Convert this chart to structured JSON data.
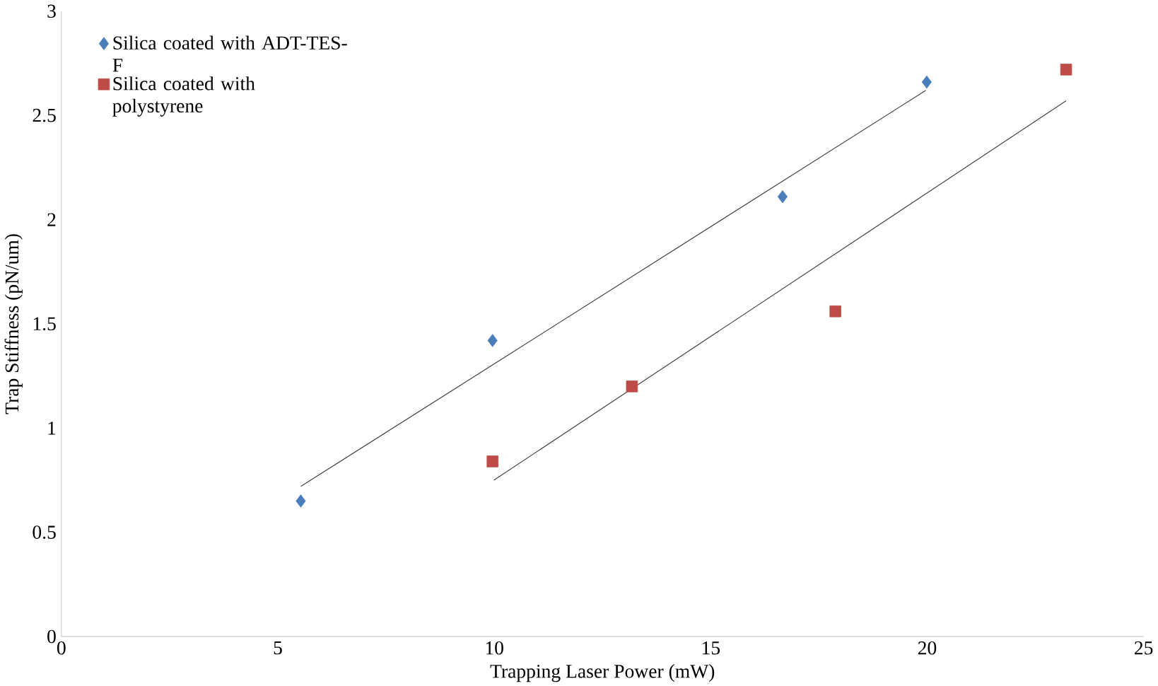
{
  "chart_data": {
    "type": "scatter",
    "xlabel": "Trapping Laser Power (mW)",
    "ylabel": "Trap Stiffness (pN/um)",
    "xlim": [
      0,
      25
    ],
    "ylim": [
      0,
      3
    ],
    "xticks": [
      0,
      5,
      10,
      15,
      20,
      25
    ],
    "yticks": [
      0,
      0.5,
      1,
      1.5,
      2,
      2.5,
      3
    ],
    "grid": false,
    "legend": "top left",
    "series": [
      {
        "name": "Silica coated with ADT-TES-F",
        "color": "#4a7ebb",
        "marker": "diamond",
        "x": [
          5.53,
          9.96,
          16.66,
          19.99
        ],
        "values": [
          0.65,
          1.42,
          2.11,
          2.66
        ]
      },
      {
        "name": "Silica coated with polystyrene",
        "color": "#be4b48",
        "marker": "square",
        "x": [
          9.96,
          13.18,
          17.88,
          23.21
        ],
        "values": [
          0.84,
          1.2,
          1.56,
          2.72
        ]
      },
      {
        "type": "line",
        "color": "#404040",
        "marker": "none",
        "x": [
          5.53,
          19.97
        ],
        "values": [
          0.72,
          2.62
        ]
      },
      {
        "type": "line",
        "color": "#404040",
        "marker": "none",
        "x": [
          9.99,
          23.21
        ],
        "values": [
          0.75,
          2.57
        ]
      }
    ]
  }
}
